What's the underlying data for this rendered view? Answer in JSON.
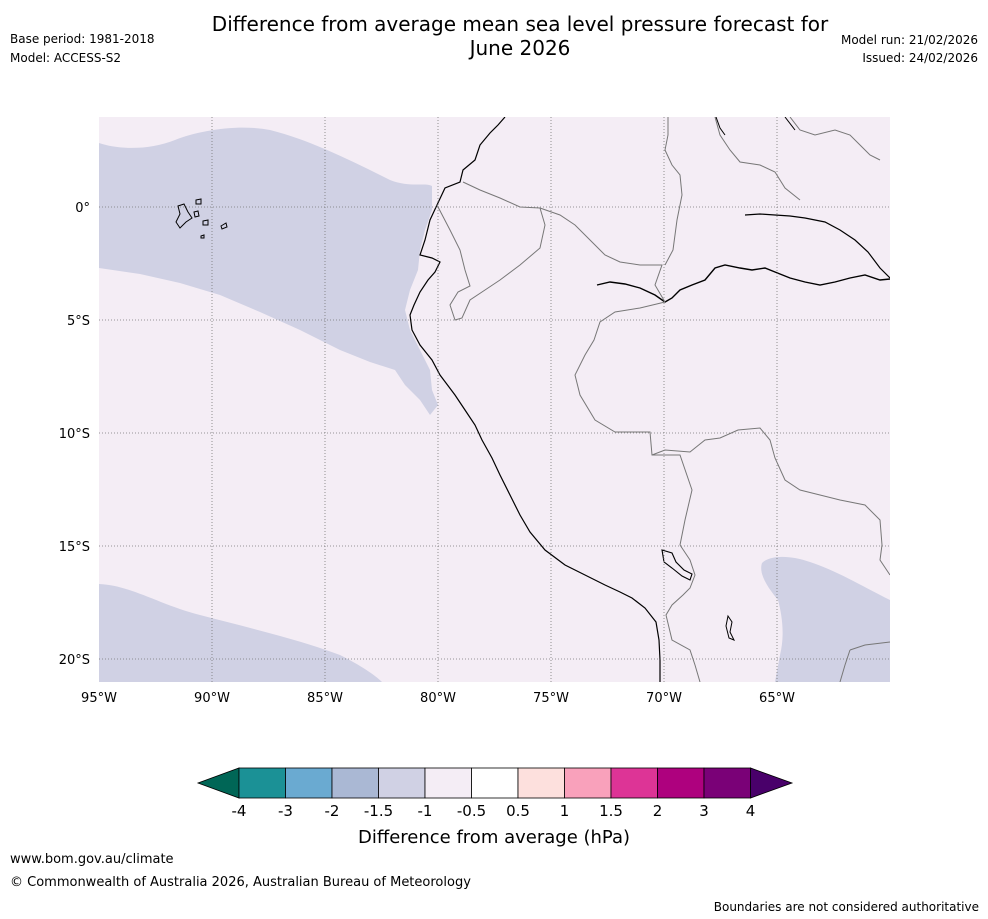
{
  "header": {
    "title_line1": "Difference from average mean sea level pressure forecast for",
    "title_line2": "June 2026",
    "base_period": "Base period: 1981-2018",
    "model": "Model: ACCESS-S2",
    "model_run": "Model run: 21/02/2026",
    "issued": "Issued: 24/02/2026"
  },
  "map": {
    "lat_labels": [
      "0°",
      "5°S",
      "10°S",
      "15°S",
      "20°S"
    ],
    "lon_labels": [
      "95°W",
      "90°W",
      "85°W",
      "80°W",
      "75°W",
      "70°W",
      "65°W"
    ],
    "colors": {
      "background_anomaly": "#f4edf5",
      "negative_anomaly": "#d0d1e4",
      "coast": "#000000",
      "border": "#777777",
      "grid": "#777777"
    }
  },
  "colorbar": {
    "tick_labels": [
      "-4",
      "-3",
      "-2",
      "-1.5",
      "-1",
      "-0.5",
      "0.5",
      "1",
      "1.5",
      "2",
      "3",
      "4"
    ],
    "colors": [
      "#006656",
      "#1b9196",
      "#6aaad1",
      "#aab8d4",
      "#d0d1e4",
      "#f4edf5",
      "#ffffff",
      "#fde0dd",
      "#f9a1bb",
      "#dd3496",
      "#ae017e",
      "#7a0177",
      "#49006a"
    ],
    "label": "Difference from average (hPa)"
  },
  "footer": {
    "url": "www.bom.gov.au/climate",
    "copyright": "© Commonwealth of Australia 2026, Australian Bureau of Meteorology",
    "disclaimer": "Boundaries are not considered authoritative"
  }
}
